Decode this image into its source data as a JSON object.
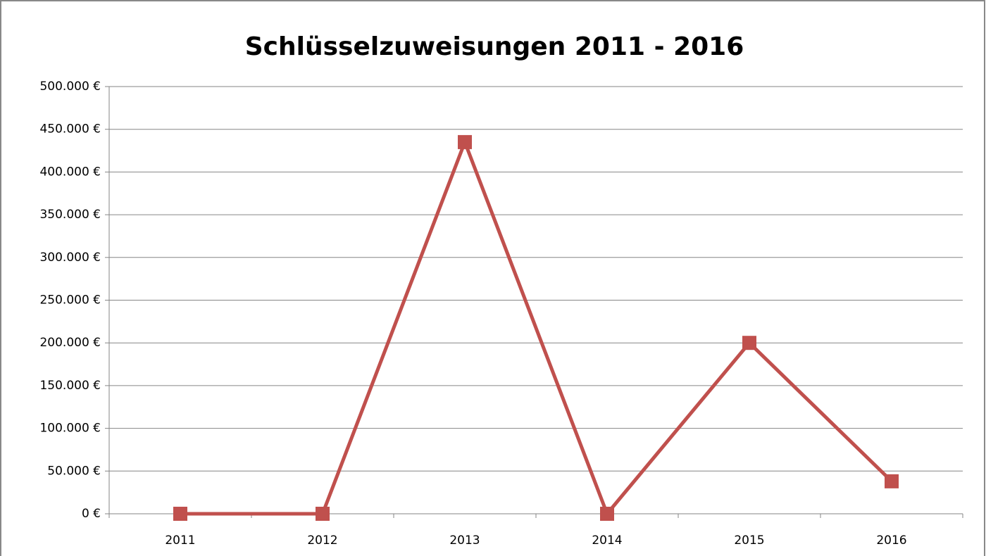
{
  "chart_data": {
    "type": "line",
    "title": "Schlüsselzuweisungen 2011 - 2016",
    "categories": [
      "2011",
      "2012",
      "2013",
      "2014",
      "2015",
      "2016"
    ],
    "series": [
      {
        "name": "Schlüsselzuweisungen",
        "color": "#c0504d",
        "values": [
          0,
          0,
          435000,
          0,
          200000,
          38000
        ]
      }
    ],
    "ylim": [
      0,
      500000
    ],
    "yticks": [
      {
        "value": 0,
        "label": "0 €"
      },
      {
        "value": 50000,
        "label": "50.000 €"
      },
      {
        "value": 100000,
        "label": "100.000 €"
      },
      {
        "value": 150000,
        "label": "150.000 €"
      },
      {
        "value": 200000,
        "label": "200.000 €"
      },
      {
        "value": 250000,
        "label": "250.000 €"
      },
      {
        "value": 300000,
        "label": "300.000 €"
      },
      {
        "value": 350000,
        "label": "350.000 €"
      },
      {
        "value": 400000,
        "label": "400.000 €"
      },
      {
        "value": 450000,
        "label": "450.000 €"
      },
      {
        "value": 500000,
        "label": "500.000 €"
      }
    ],
    "grid": true,
    "legend": false
  }
}
